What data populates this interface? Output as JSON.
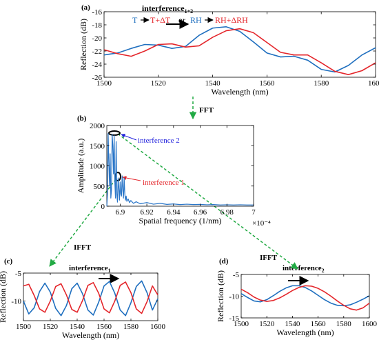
{
  "colors": {
    "blue": "#1f6fbf",
    "red": "#e4262b",
    "pale_blue": "#2a76c8",
    "annot_blue": "#2222dd",
    "green": "#22aa44",
    "axis": "#000000"
  },
  "arrow_icon": "right-arrow-icon",
  "chart_data": [
    {
      "panel": "(a)",
      "type": "line",
      "title_main": "interference",
      "title_sub": "1+2",
      "xlabel": "Wavelength (nm)",
      "ylabel": "Reflection (dB)",
      "xlim": [
        1500,
        1600
      ],
      "ylim": [
        -26,
        -16
      ],
      "xticks": [
        1500,
        1520,
        1540,
        1560,
        1580,
        1600
      ],
      "yticks": [
        -16,
        -18,
        -20,
        -22,
        -24,
        -26
      ],
      "legend": {
        "t": "T",
        "t2": "T+ΔT",
        "or": "or",
        "rh": "RH",
        "rh2": "RH+ΔRH"
      },
      "series": [
        {
          "color": "blue",
          "x": [
            1500,
            1505,
            1510,
            1515,
            1520,
            1525,
            1530,
            1535,
            1540,
            1545,
            1550,
            1555,
            1560,
            1565,
            1570,
            1575,
            1580,
            1585,
            1590,
            1595,
            1600
          ],
          "y": [
            -22.6,
            -22.3,
            -21.6,
            -21.0,
            -21.1,
            -21.6,
            -21.3,
            -19.6,
            -18.5,
            -18.3,
            -19.0,
            -20.6,
            -22.3,
            -22.9,
            -22.8,
            -23.4,
            -24.8,
            -25.2,
            -24.2,
            -22.6,
            -21.5
          ]
        },
        {
          "color": "red",
          "x": [
            1500,
            1505,
            1510,
            1515,
            1520,
            1525,
            1530,
            1535,
            1540,
            1545,
            1550,
            1555,
            1560,
            1565,
            1570,
            1575,
            1580,
            1585,
            1590,
            1595,
            1600
          ],
          "y": [
            -21.8,
            -22.4,
            -22.8,
            -22.0,
            -21.0,
            -20.9,
            -21.4,
            -21.2,
            -19.9,
            -18.9,
            -18.6,
            -19.2,
            -20.7,
            -22.2,
            -22.6,
            -22.6,
            -23.8,
            -25.1,
            -25.6,
            -25.0,
            -23.8
          ]
        }
      ]
    },
    {
      "panel": "(b)",
      "type": "line",
      "xlabel": "Spatial frequency (1/nm)",
      "ylabel": "Amplitude (a.u.)",
      "x_exponent": "×10⁻⁴",
      "xlim": [
        6.89,
        7.0
      ],
      "ylim": [
        0,
        2000
      ],
      "xticks": [
        6.9,
        6.92,
        6.94,
        6.96,
        6.98,
        7
      ],
      "xticklabels": [
        "6.9",
        "6.92",
        "6.94",
        "6.96",
        "6.98",
        "7"
      ],
      "yticks": [
        0,
        500,
        1000,
        1500,
        2000
      ],
      "series": [
        {
          "color": "pale_blue",
          "x": [
            6.89,
            6.8905,
            6.891,
            6.8915,
            6.892,
            6.8925,
            6.893,
            6.8935,
            6.894,
            6.8945,
            6.895,
            6.8955,
            6.896,
            6.8965,
            6.897,
            6.8975,
            6.898,
            6.8985,
            6.899,
            6.8995,
            6.9,
            6.9005,
            6.901,
            6.9015,
            6.902,
            6.9025,
            6.903,
            6.9035,
            6.904,
            6.9045,
            6.905,
            6.906,
            6.907,
            6.908,
            6.91,
            6.912,
            6.915,
            6.92,
            6.925,
            6.93,
            6.935,
            6.94,
            6.945,
            6.95,
            6.955,
            6.96,
            6.965,
            6.97,
            6.975,
            6.98,
            6.985,
            6.99,
            6.995,
            7.0
          ],
          "y": [
            0,
            300,
            1800,
            1100,
            500,
            1300,
            200,
            400,
            1780,
            1500,
            800,
            1750,
            600,
            200,
            1600,
            300,
            100,
            700,
            450,
            150,
            600,
            300,
            250,
            750,
            400,
            200,
            700,
            300,
            150,
            250,
            120,
            180,
            90,
            140,
            70,
            110,
            60,
            90,
            50,
            70,
            45,
            55,
            40,
            50,
            40,
            45,
            35,
            40,
            30,
            35,
            30,
            35,
            30,
            30
          ]
        }
      ],
      "annotations": {
        "a1": "interference 2",
        "a2": "interference 1"
      },
      "fft_label": "FFT"
    },
    {
      "panel": "(c)",
      "type": "line",
      "title_main": "interference",
      "title_sub": "1",
      "xlabel": "Wavelength (nm)",
      "ylabel": "Reflection (dB)",
      "xlim": [
        1500,
        1600
      ],
      "ylim": [
        -13.5,
        -5
      ],
      "xticks": [
        1500,
        1520,
        1540,
        1560,
        1580,
        1600
      ],
      "yticks": [
        -5,
        -10
      ],
      "ifft_label": "IFFT",
      "series": [
        {
          "color": "blue",
          "x": [
            1500,
            1504,
            1508,
            1512,
            1516,
            1520,
            1524,
            1528,
            1532,
            1536,
            1540,
            1544,
            1548,
            1552,
            1556,
            1560,
            1564,
            1568,
            1572,
            1576,
            1580,
            1584,
            1588,
            1592,
            1596,
            1600
          ],
          "y": [
            -10,
            -12.3,
            -11.2,
            -8.3,
            -6.8,
            -8.4,
            -11.3,
            -12.6,
            -10.8,
            -7.8,
            -6.8,
            -8.7,
            -11.6,
            -12.5,
            -10.2,
            -7.3,
            -6.5,
            -8.6,
            -11.6,
            -12.6,
            -10.3,
            -7.4,
            -6.4,
            -8.5,
            -11.6,
            -9.6
          ]
        },
        {
          "color": "red",
          "x": [
            1500,
            1504,
            1508,
            1512,
            1516,
            1520,
            1524,
            1528,
            1532,
            1536,
            1540,
            1544,
            1548,
            1552,
            1556,
            1560,
            1564,
            1568,
            1572,
            1576,
            1580,
            1584,
            1588,
            1592,
            1596,
            1600
          ],
          "y": [
            -7.3,
            -7.0,
            -9.0,
            -11.4,
            -12.0,
            -10.0,
            -7.4,
            -6.9,
            -8.9,
            -11.5,
            -12.0,
            -9.9,
            -7.2,
            -6.7,
            -8.6,
            -11.4,
            -12.1,
            -10.0,
            -7.2,
            -6.6,
            -8.5,
            -11.4,
            -12.2,
            -10.1,
            -7.3,
            -8.9
          ]
        }
      ]
    },
    {
      "panel": "(d)",
      "type": "line",
      "title_main": "interference",
      "title_sub": "2",
      "xlabel": "Wavelength (nm)",
      "ylabel": "Reflection (dB)",
      "xlim": [
        1500,
        1600
      ],
      "ylim": [
        -15,
        -5
      ],
      "xticks": [
        1500,
        1520,
        1540,
        1560,
        1580,
        1600
      ],
      "yticks": [
        -5,
        -10,
        -15
      ],
      "ifft_label": "IFFT",
      "series": [
        {
          "color": "blue",
          "x": [
            1500,
            1505,
            1510,
            1515,
            1520,
            1525,
            1530,
            1535,
            1540,
            1545,
            1550,
            1555,
            1560,
            1565,
            1570,
            1575,
            1580,
            1585,
            1590,
            1595,
            1600
          ],
          "y": [
            -9.4,
            -10.3,
            -11.1,
            -11.3,
            -10.8,
            -9.9,
            -8.9,
            -8.1,
            -7.6,
            -7.6,
            -8.0,
            -8.8,
            -9.8,
            -10.8,
            -11.6,
            -12.1,
            -12.2,
            -12.0,
            -11.4,
            -10.7,
            -9.9
          ]
        },
        {
          "color": "red",
          "x": [
            1500,
            1505,
            1510,
            1515,
            1520,
            1525,
            1530,
            1535,
            1540,
            1545,
            1550,
            1555,
            1560,
            1565,
            1570,
            1575,
            1580,
            1585,
            1590,
            1595,
            1600
          ],
          "y": [
            -8.4,
            -9.2,
            -10.2,
            -10.9,
            -11.2,
            -11.0,
            -10.4,
            -9.6,
            -8.7,
            -8.0,
            -7.6,
            -7.7,
            -8.2,
            -9.0,
            -10.0,
            -11.1,
            -12.1,
            -12.9,
            -13.2,
            -12.7,
            -11.6
          ]
        }
      ]
    }
  ]
}
